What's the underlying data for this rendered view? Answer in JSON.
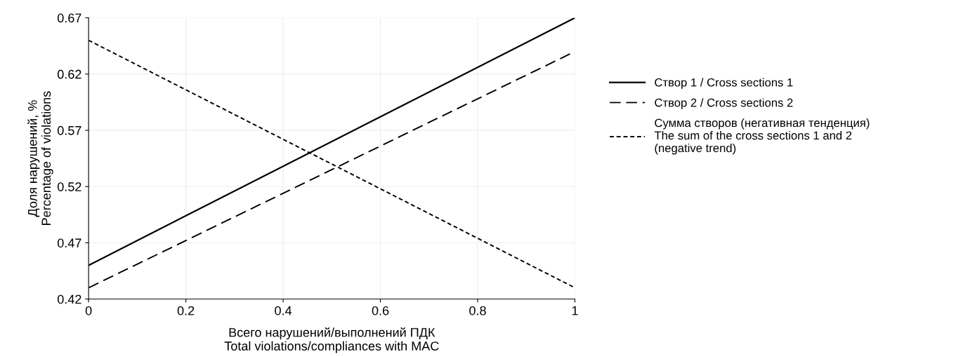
{
  "chart_data": {
    "type": "line",
    "xlabel": "Всего нарушений/выполнений ПДК\nTotal violations/compliances with MAC",
    "ylabel": "Доля нарушений, %\nPercentage of violations",
    "x": [
      0,
      1
    ],
    "series": [
      {
        "name": "Створ 1 / Cross sections 1",
        "color": "#000000",
        "values": [
          0.45,
          0.67
        ],
        "line_style": "solid"
      },
      {
        "name": "Створ 2 / Cross sections 2",
        "color": "#000000",
        "values": [
          0.43,
          0.64
        ],
        "line_style": "dashed"
      },
      {
        "name": "Сумма створов (негативная тенденция)\nThe sum of the cross sections 1 and 2\n(negative trend)",
        "color": "#000000",
        "values": [
          0.65,
          0.43
        ],
        "line_style": "dotted"
      }
    ],
    "xlim": [
      0,
      1
    ],
    "ylim": [
      0.42,
      0.67
    ],
    "xticks": [
      0,
      0.2,
      0.4,
      0.6,
      0.8,
      1
    ],
    "yticks": [
      0.42,
      0.47,
      0.52,
      0.57,
      0.62,
      0.67
    ],
    "grid": true,
    "legend": "right",
    "marker": "none"
  }
}
